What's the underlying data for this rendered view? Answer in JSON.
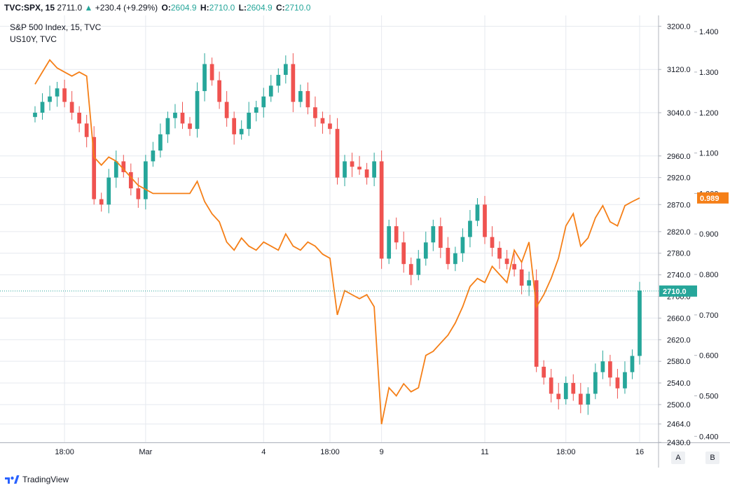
{
  "header": {
    "symbol": "TVC:SPX, 15",
    "last": "2711.0",
    "change_arrow": "▲",
    "change": "+230.4 (+9.29%)",
    "o_label": "O:",
    "o_value": "2604.9",
    "h_label": "H:",
    "h_value": "2710.0",
    "l_label": "L:",
    "l_value": "2604.9",
    "c_label": "C:",
    "c_value": "2710.0"
  },
  "legend": {
    "main": "S&P 500 Index, 15, TVC",
    "overlay": "US10Y, TVC"
  },
  "colors": {
    "up": "#26a69a",
    "down": "#ef5350",
    "line": "#f57f17",
    "grid": "#e6e9ef",
    "price_line": "#26a69a"
  },
  "chart_data": {
    "type": "line",
    "x_ticks": [
      "18:00",
      "Mar",
      "4",
      "18:00",
      "9",
      "11",
      "18:00",
      "16"
    ],
    "right_axis": {
      "ticks": [
        "3200.0",
        "3120.0",
        "3040.0",
        "2960.0",
        "2920.0",
        "2870.0",
        "2820.0",
        "2780.0",
        "2740.0",
        "2700.0",
        "2660.0",
        "2620.0",
        "2580.0",
        "2540.0",
        "2500.0",
        "2464.0",
        "2430.0"
      ],
      "last_value_badge": "2710.0"
    },
    "overlay_axis": {
      "ticks": [
        "1.400",
        "1.300",
        "1.200",
        "1.100",
        "1.000",
        "0.900",
        "0.800",
        "0.700",
        "0.600",
        "0.500",
        "0.400"
      ],
      "last_value_badge": "0.989"
    },
    "series": [
      {
        "name": "S&P 500 Index, 15, TVC",
        "kind": "candlestick",
        "y_range": [
          2430,
          3220
        ],
        "values_approx": [
          3040,
          3060,
          3070,
          3085,
          3060,
          3040,
          3020,
          2995,
          2880,
          2870,
          2920,
          2950,
          2930,
          2900,
          2880,
          2950,
          2970,
          3000,
          3030,
          3040,
          3020,
          3010,
          3080,
          3130,
          3100,
          3060,
          3030,
          3000,
          3010,
          3040,
          3050,
          3070,
          3090,
          3110,
          3130,
          3060,
          3080,
          3050,
          3030,
          3020,
          3010,
          2920,
          2950,
          2940,
          2935,
          2920,
          2950,
          2770,
          2830,
          2800,
          2760,
          2740,
          2770,
          2800,
          2830,
          2790,
          2760,
          2780,
          2810,
          2840,
          2870,
          2810,
          2790,
          2770,
          2760,
          2750,
          2720,
          2730,
          2570,
          2550,
          2520,
          2510,
          2540,
          2520,
          2500,
          2520,
          2560,
          2580,
          2550,
          2530,
          2560,
          2590,
          2711
        ]
      },
      {
        "name": "US10Y, TVC",
        "kind": "line",
        "y_range": [
          0.385,
          1.44
        ],
        "values_approx": [
          1.27,
          1.3,
          1.33,
          1.31,
          1.3,
          1.29,
          1.3,
          1.29,
          1.09,
          1.07,
          1.09,
          1.08,
          1.06,
          1.04,
          1.02,
          1.01,
          1.0,
          1.0,
          1.0,
          1.0,
          1.0,
          1.0,
          1.03,
          0.98,
          0.95,
          0.93,
          0.88,
          0.86,
          0.89,
          0.87,
          0.86,
          0.88,
          0.87,
          0.86,
          0.9,
          0.87,
          0.86,
          0.88,
          0.87,
          0.85,
          0.84,
          0.7,
          0.76,
          0.75,
          0.74,
          0.75,
          0.72,
          0.43,
          0.52,
          0.5,
          0.53,
          0.51,
          0.52,
          0.6,
          0.61,
          0.63,
          0.65,
          0.68,
          0.72,
          0.77,
          0.79,
          0.78,
          0.82,
          0.8,
          0.78,
          0.86,
          0.83,
          0.88,
          0.72,
          0.75,
          0.79,
          0.84,
          0.92,
          0.95,
          0.87,
          0.89,
          0.94,
          0.97,
          0.93,
          0.92,
          0.97,
          0.98,
          0.989
        ]
      }
    ],
    "grid": true,
    "legend_position": "top-left"
  },
  "footer": {
    "brand": "TradingView",
    "scale_a": "A",
    "scale_b": "B"
  }
}
